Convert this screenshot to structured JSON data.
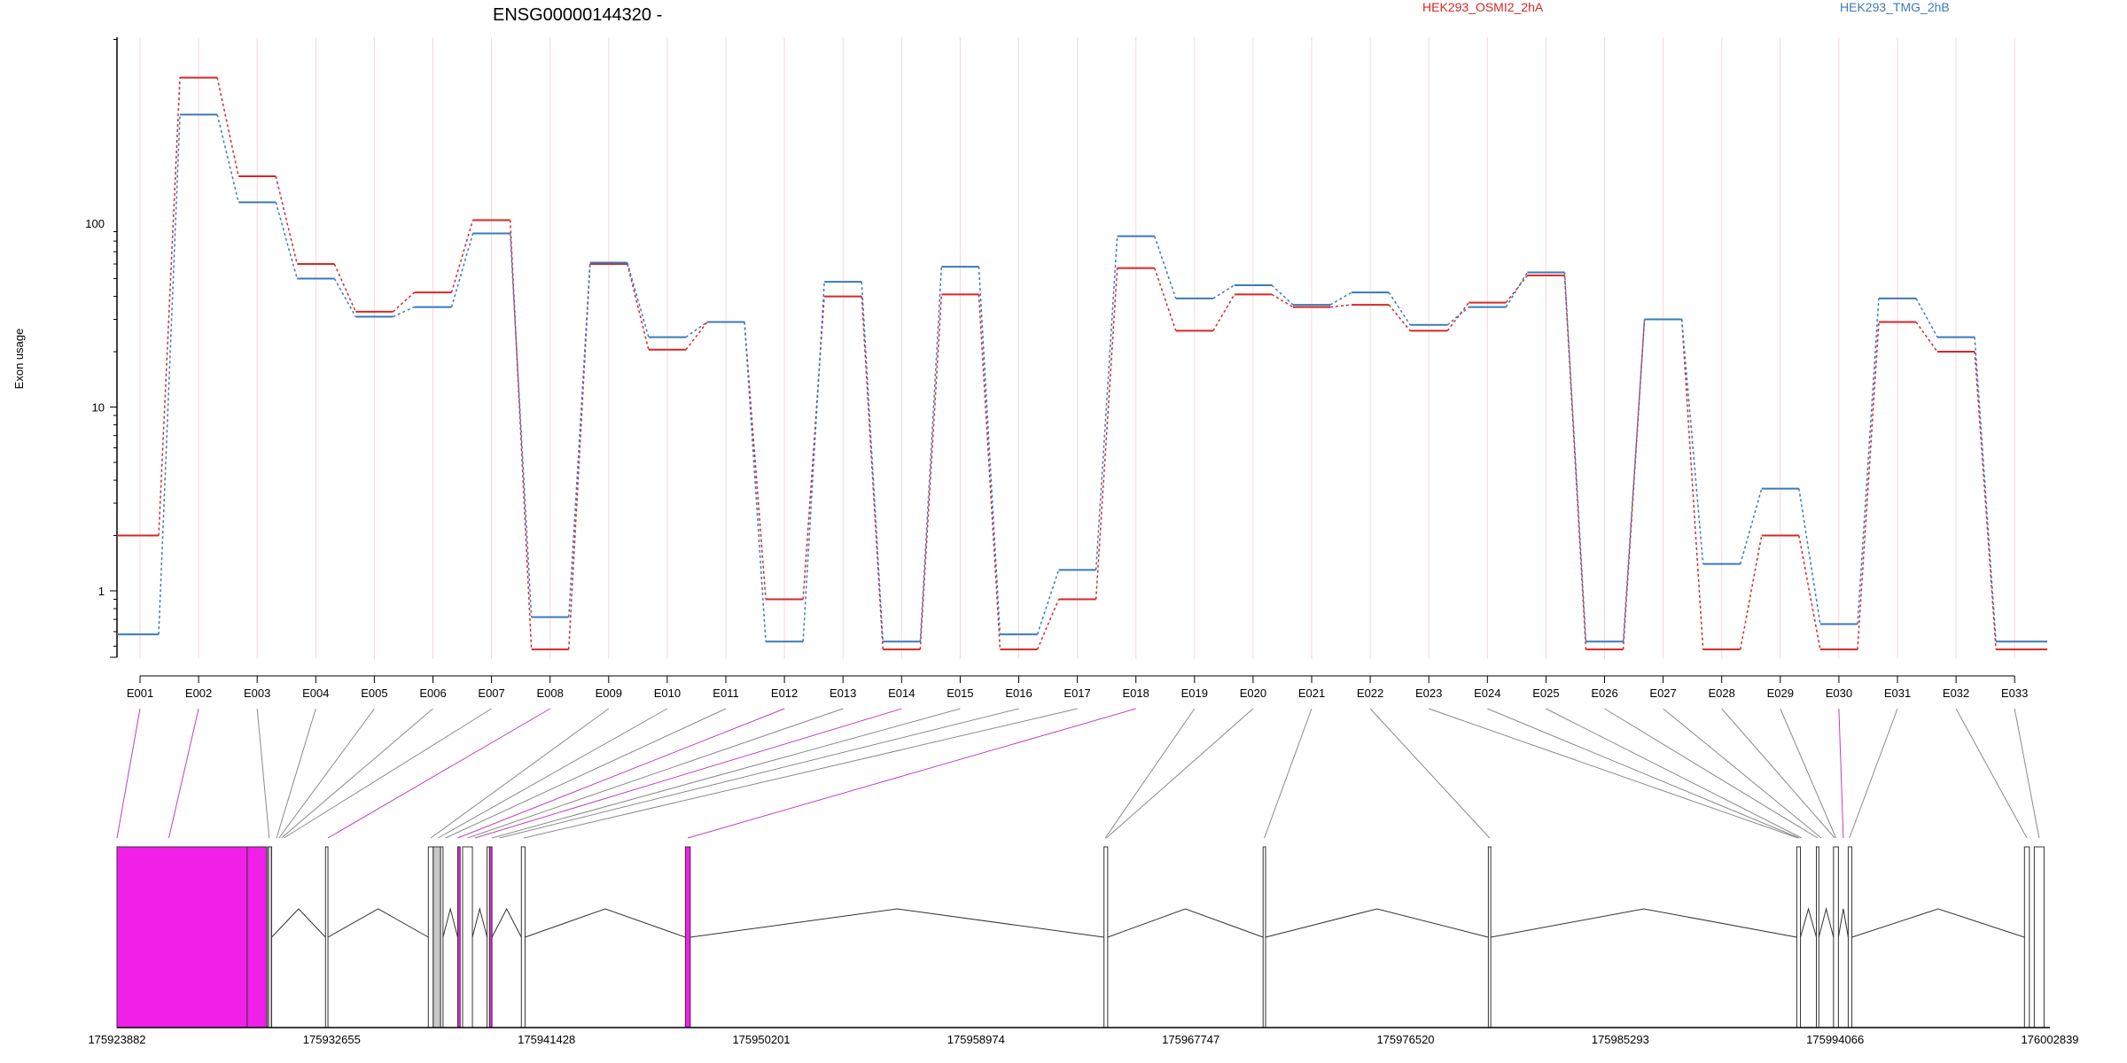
{
  "chart_data": {
    "type": "line",
    "title": "ENSG00000144320 -",
    "ylabel": "Exon usage",
    "yscale": "log",
    "yticks": [
      "1",
      "10",
      "100"
    ],
    "categories": [
      "E001",
      "E002",
      "E003",
      "E004",
      "E005",
      "E006",
      "E007",
      "E008",
      "E009",
      "E010",
      "E011",
      "E012",
      "E013",
      "E014",
      "E015",
      "E016",
      "E017",
      "E018",
      "E019",
      "E020",
      "E021",
      "E022",
      "E023",
      "E024",
      "E025",
      "E026",
      "E027",
      "E028",
      "E029",
      "E030",
      "E031",
      "E032",
      "E033"
    ],
    "series": [
      {
        "name": "HEK293_OSMI2_2hA",
        "color": "#d62728",
        "values": [
          2.0,
          620,
          180,
          60,
          33,
          42,
          104,
          0.48,
          60,
          20.5,
          29,
          0.9,
          40,
          0.48,
          41,
          0.48,
          0.9,
          57,
          26,
          41,
          35,
          36,
          26,
          37,
          52,
          0.48,
          30,
          0.48,
          2.0,
          0.48,
          29,
          20,
          0.48
        ]
      },
      {
        "name": "HEK293_TMG_2hB",
        "color": "#1f77b4",
        "values": [
          0.58,
          390,
          130,
          50,
          31,
          35,
          88,
          0.72,
          61,
          24,
          29,
          0.53,
          48,
          0.53,
          58,
          0.58,
          1.3,
          85,
          39,
          46,
          36,
          42,
          28,
          35,
          54,
          0.53,
          30,
          1.4,
          3.6,
          0.66,
          39,
          24,
          0.53
        ]
      }
    ],
    "gene_model": {
      "genomic_ticks": [
        "175923882",
        "175932655",
        "175941428",
        "175950201",
        "175958974",
        "175967747",
        "175976520",
        "175985293",
        "175994066",
        "176002839"
      ],
      "highlighted_exons": [
        "E001",
        "E002",
        "E008",
        "E012",
        "E014",
        "E018",
        "E030"
      ],
      "highlight_color": "#f020e8"
    }
  }
}
